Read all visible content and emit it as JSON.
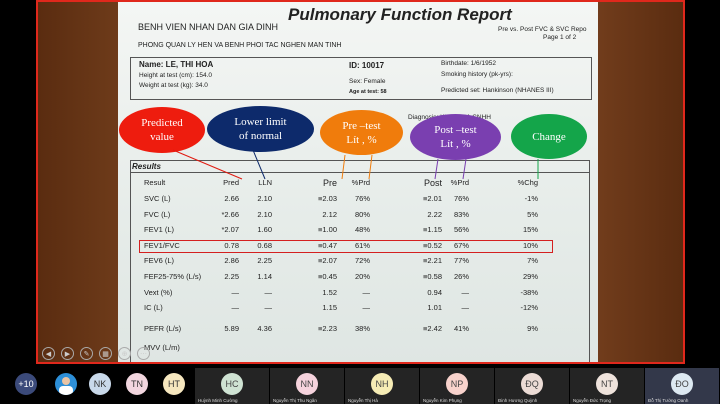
{
  "report": {
    "title": "Pulmonary Function Report",
    "hospital": "BENH VIEN NHAN DAN GIA DINH",
    "department": "PHONG QUAN LY HEN VA BENH PHOI TAC NGHEN MAN TINH",
    "report_type": "Pre vs. Post FVC & SVC Repo",
    "page": "Page 1 of 2",
    "patient": {
      "name": "Name:  LE, THI HOA",
      "height": "Height at test (cm):  154.0",
      "weight": "Weight at test (kg):  34.0",
      "id": "ID:  10017",
      "sex": "Sex:  Female",
      "age": "Age at test:  58",
      "birthdate": "Birthdate:  1/6/1952",
      "smoking": "Smoking history (pk-yrs):",
      "predicted_set": "Predicted set:  Hankinson (NHANES III)",
      "diagnosis": "Diagnosis:  KIEM TRA CNHH"
    },
    "results_label": "Results",
    "columns": [
      "Result",
      "Pred",
      "LLN",
      "Pre",
      "%Prd",
      "Post",
      "%Prd",
      "%Chg"
    ],
    "rows": [
      [
        "SVC  (L)",
        "2.66",
        "2.10",
        "≡2.03",
        "76%",
        "≡2.01",
        "76%",
        "-1%"
      ],
      [
        "FVC  (L)",
        "*2.66",
        "2.10",
        "2.12",
        "80%",
        "2.22",
        "83%",
        "5%"
      ],
      [
        "FEV1  (L)",
        "*2.07",
        "1.60",
        "≡1.00",
        "48%",
        "≡1.15",
        "56%",
        "15%"
      ],
      [
        "FEV1/FVC",
        "0.78",
        "0.68",
        "≡0.47",
        "61%",
        "≡0.52",
        "67%",
        "10%"
      ],
      [
        "FEV6  (L)",
        "2.86",
        "2.25",
        "≡2.07",
        "72%",
        "≡2.21",
        "77%",
        "7%"
      ],
      [
        "FEF25-75%  (L/s)",
        "2.25",
        "1.14",
        "≡0.45",
        "20%",
        "≡0.58",
        "26%",
        "29%"
      ],
      [
        "Vext  (%)",
        "—",
        "—",
        "1.52",
        "—",
        "0.94",
        "—",
        "-38%"
      ],
      [
        "IC  (L)",
        "—",
        "—",
        "1.15",
        "—",
        "1.01",
        "—",
        "-12%"
      ],
      [
        "PEFR  (L/s)",
        "5.89",
        "4.36",
        "≡2.23",
        "38%",
        "≡2.42",
        "41%",
        "9%"
      ],
      [
        "MVV  (L/m)",
        "",
        "",
        "",
        "",
        "",
        "",
        ""
      ]
    ],
    "highlighted_row": "FEV1/FVC"
  },
  "annotations": [
    {
      "l1": "Predicted",
      "l2": "value",
      "color": "#ee1c0e"
    },
    {
      "l1": "Lower limit",
      "l2": "of normal",
      "color": "#0d2a6b"
    },
    {
      "l1": "Pre –test",
      "l2": "Lít , %",
      "color": "#f07c0c"
    },
    {
      "l1": "Post –test",
      "l2": "Lít , %",
      "color": "#7a3fb0"
    },
    {
      "l1": "Change",
      "l2": "",
      "color": "#14a54a"
    }
  ],
  "participants": {
    "overflow": "+10",
    "small": [
      {
        "initials": "NK",
        "bg": "#c9d9ea"
      },
      {
        "initials": "TN",
        "bg": "#f2d6df"
      },
      {
        "initials": "HT",
        "bg": "#f6e7bf"
      }
    ],
    "tiles": [
      {
        "initials": "HC",
        "name": "Huỳnh Minh Cường",
        "bg": "#cfe3d3"
      },
      {
        "initials": "NN",
        "name": "Nguyễn Thị Thu Ngân",
        "bg": "#f6d3dd"
      },
      {
        "initials": "NH",
        "name": "Nguyễn Thị Hà",
        "bg": "#f6ecb5"
      },
      {
        "initials": "NP",
        "name": "Nguyễn Kim Phụng",
        "bg": "#f8d2cc"
      },
      {
        "initials": "ĐQ",
        "name": "Đinh Hương Quỳnh",
        "bg": "#ecdcd6"
      },
      {
        "initials": "NT",
        "name": "Nguyễn Đức Trọng",
        "bg": "#efe3dc"
      },
      {
        "initials": "ĐO",
        "name": "Đỗ Thị Tường Oanh",
        "bg": "#dde9f2"
      }
    ]
  },
  "slide_controls": [
    "previous",
    "next",
    "pen",
    "see-all-slides",
    "zoom",
    "more"
  ]
}
